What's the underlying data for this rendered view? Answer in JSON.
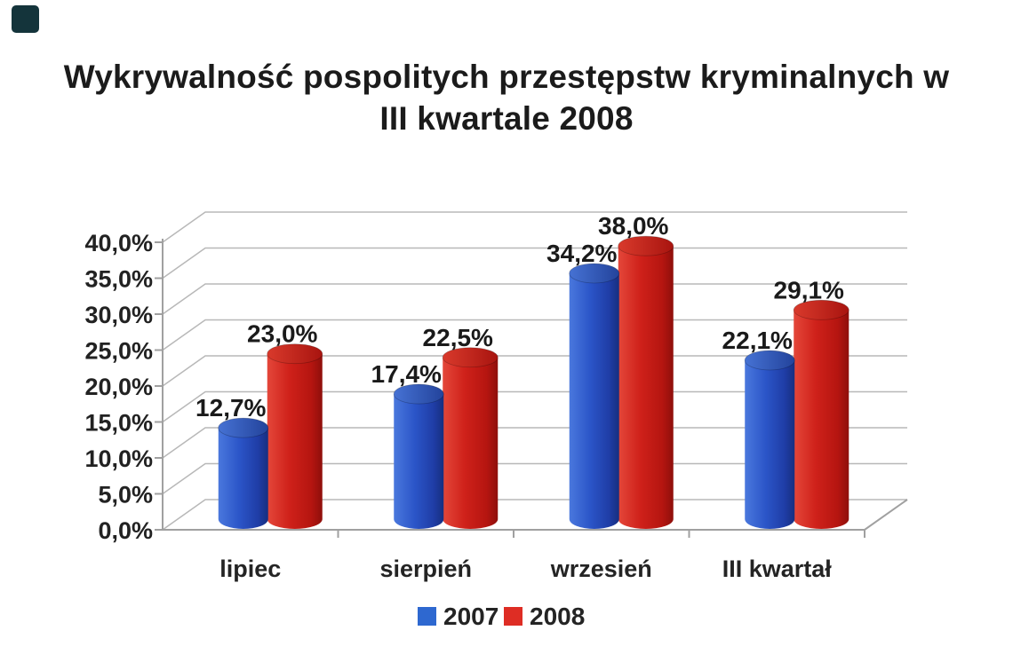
{
  "page": {
    "background": "#ffffff",
    "corner_mark_color": "#14343b"
  },
  "chart_data": {
    "type": "bar",
    "style": "3d-cylinder",
    "title": "Wykrywalność pospolitych przestępstw kryminalnych w III kwartale 2008",
    "title_lines": [
      "Wykrywalność pospolitych przestępstw kryminalnych w",
      "III kwartale 2008"
    ],
    "categories": [
      "lipiec",
      "sierpień",
      "wrzesień",
      "III kwartał"
    ],
    "series": [
      {
        "name": "2007",
        "color": "#2b55c8",
        "values": [
          12.7,
          17.4,
          34.2,
          22.1
        ]
      },
      {
        "name": "2008",
        "color": "#cf211a",
        "values": [
          23.0,
          22.5,
          38.0,
          29.1
        ]
      }
    ],
    "value_labels": [
      [
        "12,7%",
        "17,4%",
        "34,2%",
        "22,1%"
      ],
      [
        "23,0%",
        "22,5%",
        "38,0%",
        "29,1%"
      ]
    ],
    "y_ticks": [
      "0,0%",
      "5,0%",
      "10,0%",
      "15,0%",
      "20,0%",
      "25,0%",
      "30,0%",
      "35,0%",
      "40,0%"
    ],
    "ylim": [
      0,
      40
    ],
    "y_step": 5,
    "grid": true,
    "legend_position": "bottom",
    "legend": [
      {
        "label": "2007",
        "color": "#2e68d0"
      },
      {
        "label": "2008",
        "color": "#de2d24"
      }
    ],
    "colors": {
      "grid": "#b8b8b8",
      "axis": "#a0a0a0",
      "text": "#1d1d1d"
    }
  }
}
